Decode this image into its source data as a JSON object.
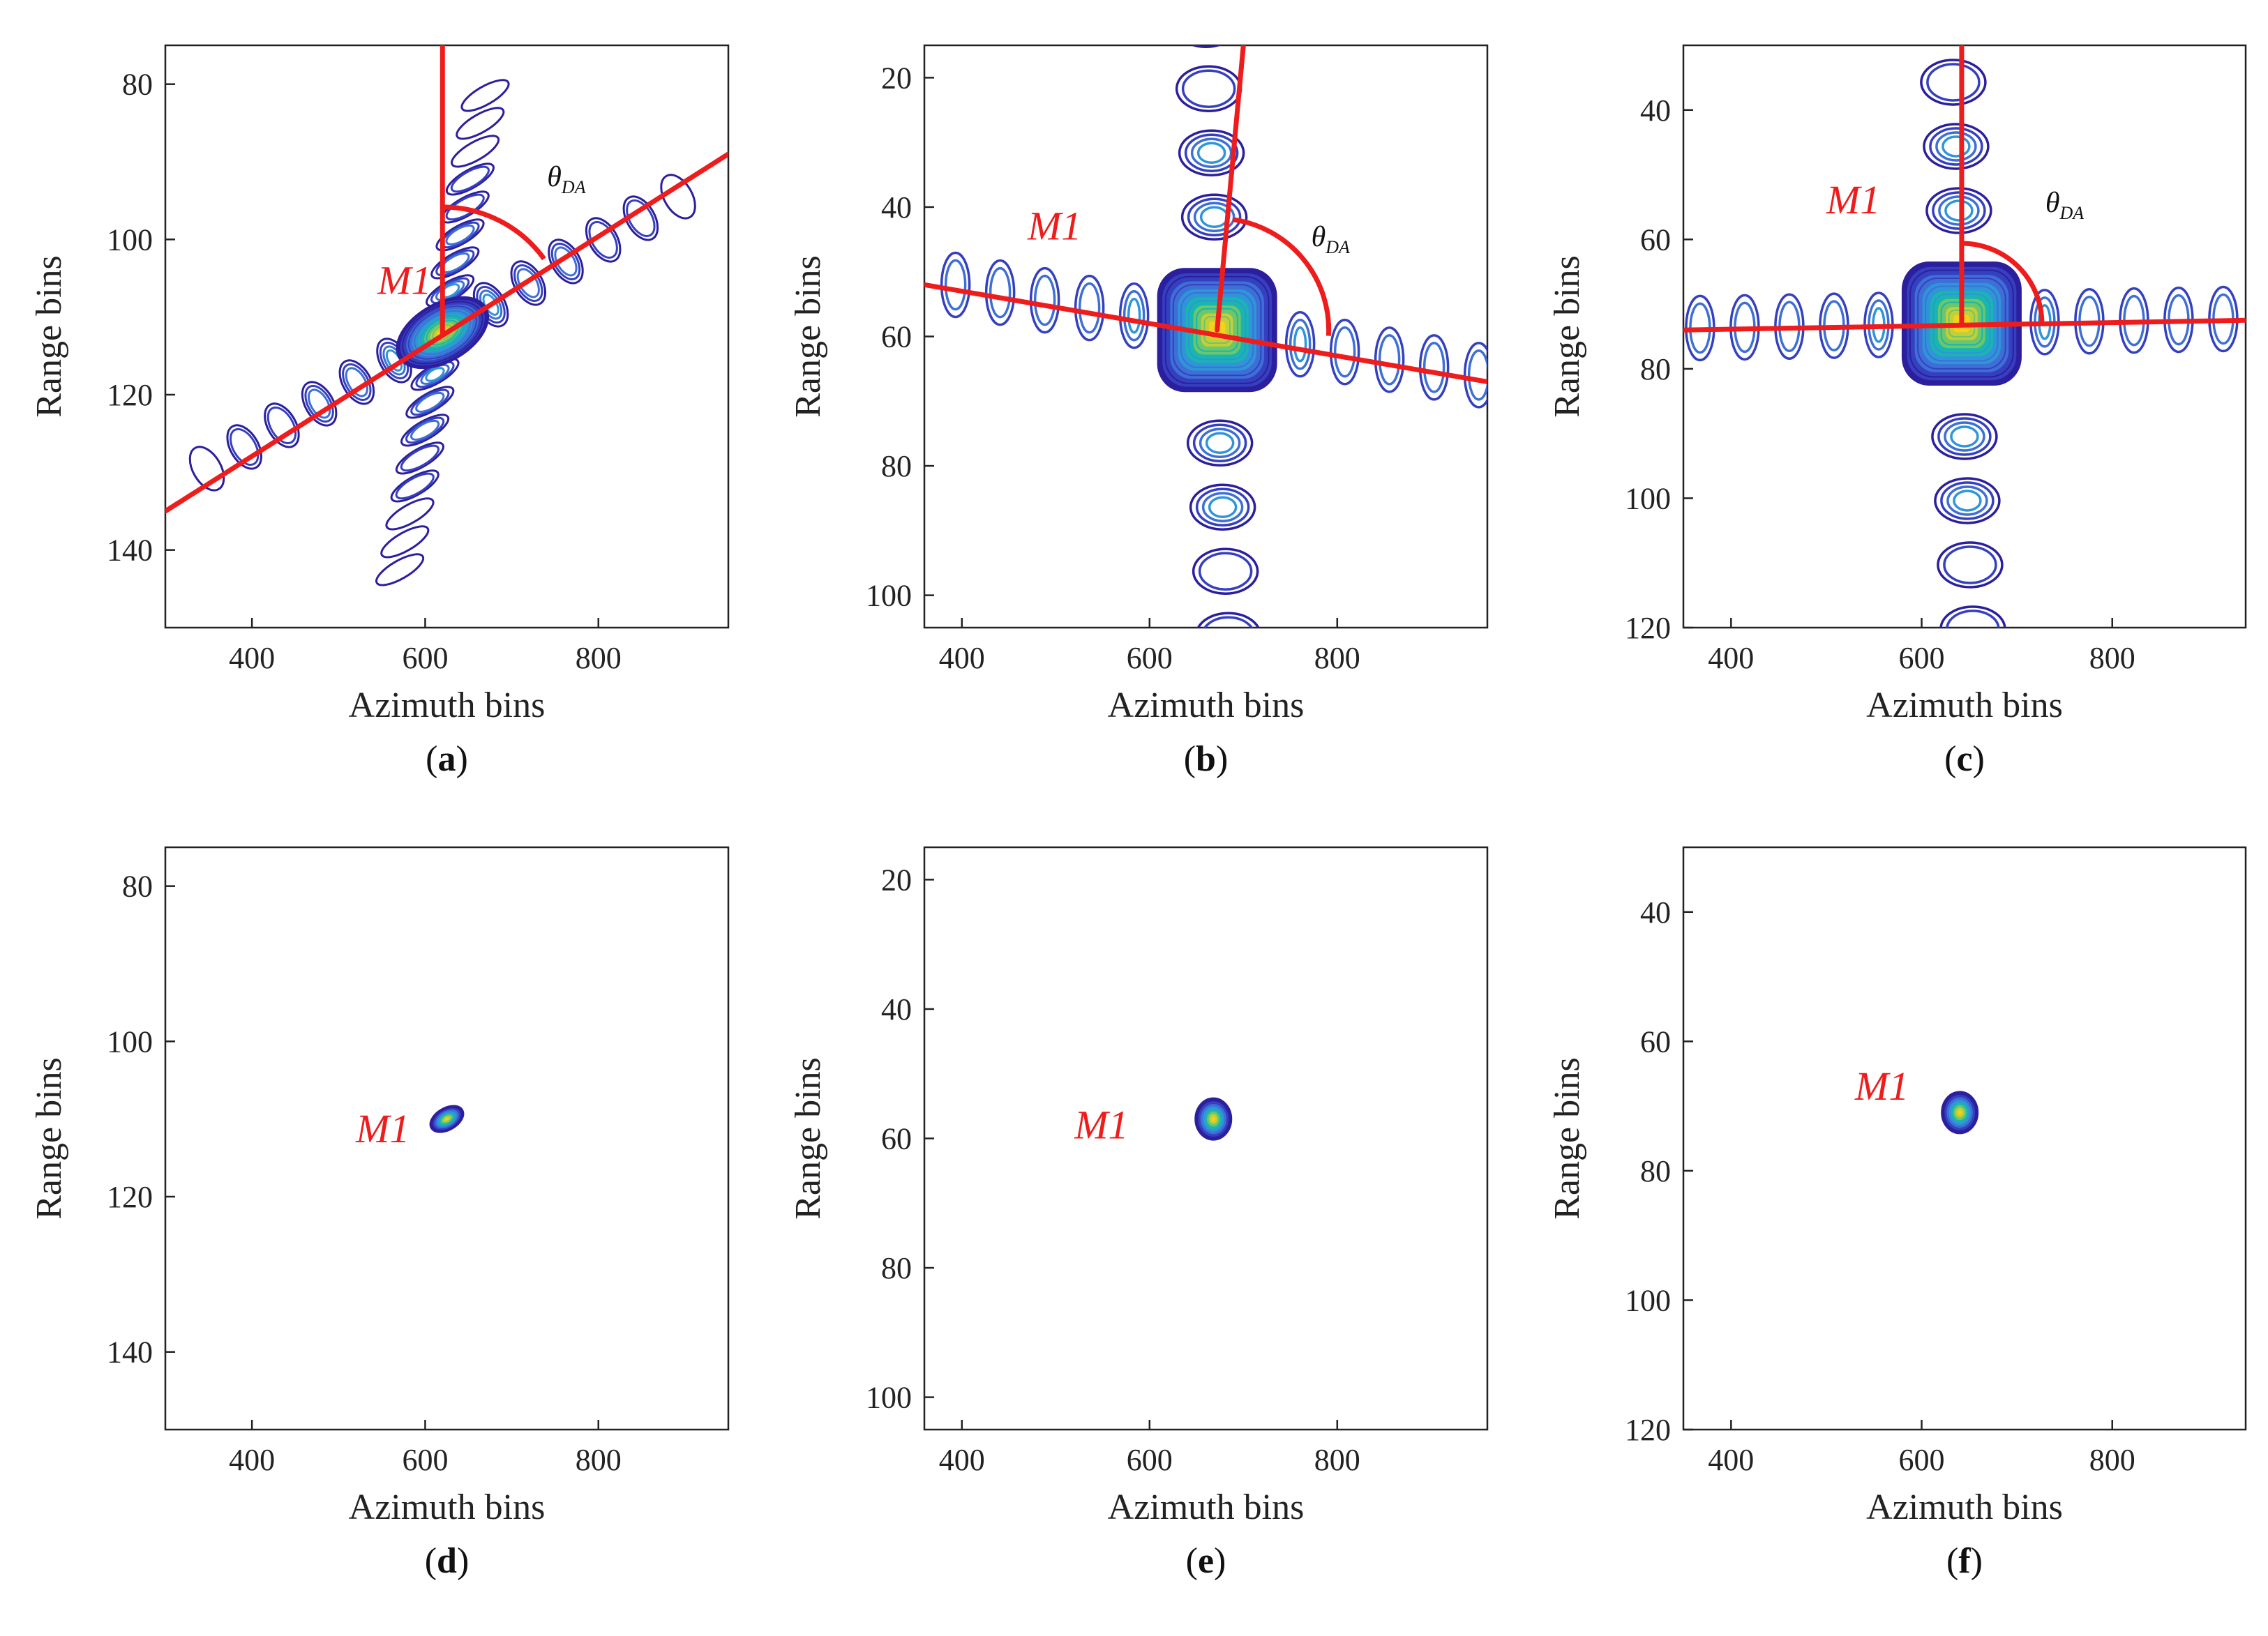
{
  "colors": {
    "contour_outer": "#2c1f9e",
    "contour_mid": "#3d6fd6",
    "contour_inner": "#19b6b0",
    "contour_core": "#f2d21a",
    "red_lines": "#ee1c1c",
    "axis": "#222222"
  },
  "chart_data": [
    {
      "id": "a",
      "type": "contour",
      "caption_letter": "a",
      "xlabel": "Azimuth bins",
      "ylabel": "Range bins",
      "xlim": [
        300,
        950
      ],
      "ylim": [
        150,
        75
      ],
      "y_reversed": true,
      "xticks": [
        400,
        600,
        800
      ],
      "yticks": [
        80,
        100,
        120,
        140
      ],
      "annotation": "M1",
      "annotation_pos": [
        545,
        107
      ],
      "angle_label": "θ",
      "angle_sub": "DA",
      "peak": {
        "x": 620,
        "y": 112,
        "orientation_deg": 30
      },
      "sidelobe_axis": "rotated",
      "sidelobes_main": 6,
      "sidelobes_cross": 8,
      "lines": [
        {
          "from": [
            300,
            135
          ],
          "to": [
            950,
            89
          ]
        },
        {
          "from": [
            620,
            112
          ],
          "to": [
            620,
            75
          ]
        }
      ],
      "angle_arc": {
        "center": [
          620,
          112
        ],
        "start_deg": 90,
        "end_deg": 36
      }
    },
    {
      "id": "b",
      "type": "contour",
      "caption_letter": "b",
      "xlabel": "Azimuth bins",
      "ylabel": "Range bins",
      "xlim": [
        360,
        960
      ],
      "ylim": [
        105,
        15
      ],
      "y_reversed": true,
      "xticks": [
        400,
        600,
        800
      ],
      "yticks": [
        20,
        40,
        60,
        80,
        100
      ],
      "annotation": "M1",
      "annotation_pos": [
        470,
        45
      ],
      "angle_label": "θ",
      "angle_sub": "DA",
      "peak": {
        "x": 672,
        "y": 59,
        "orientation_deg": 0
      },
      "sidelobe_axis": "cross",
      "sidelobes_main": 5,
      "sidelobes_cross": 7,
      "lines": [
        {
          "from": [
            360,
            52
          ],
          "to": [
            960,
            67
          ]
        },
        {
          "from": [
            672,
            59
          ],
          "to": [
            700,
            15
          ]
        }
      ],
      "angle_arc": {
        "center": [
          672,
          59
        ],
        "start_deg": 82,
        "end_deg": -3
      }
    },
    {
      "id": "c",
      "type": "contour",
      "caption_letter": "c",
      "xlabel": "Azimuth bins",
      "ylabel": "Range bins",
      "xlim": [
        350,
        940
      ],
      "ylim": [
        120,
        30
      ],
      "y_reversed": true,
      "xticks": [
        400,
        600,
        800
      ],
      "yticks": [
        40,
        60,
        80,
        100,
        120
      ],
      "annotation": "M1",
      "annotation_pos": [
        500,
        56
      ],
      "angle_label": "θ",
      "angle_sub": "DA",
      "peak": {
        "x": 642,
        "y": 73,
        "orientation_deg": 0
      },
      "sidelobe_axis": "cross",
      "sidelobes_main": 6,
      "sidelobes_cross": 6,
      "lines": [
        {
          "from": [
            350,
            74
          ],
          "to": [
            940,
            72.5
          ]
        },
        {
          "from": [
            642,
            73
          ],
          "to": [
            642,
            30
          ]
        }
      ],
      "angle_arc": {
        "center": [
          642,
          73
        ],
        "start_deg": 90,
        "end_deg": 1
      }
    },
    {
      "id": "d",
      "type": "contour",
      "caption_letter": "d",
      "xlabel": "Azimuth bins",
      "ylabel": "Range bins",
      "xlim": [
        300,
        950
      ],
      "ylim": [
        150,
        75
      ],
      "y_reversed": true,
      "xticks": [
        400,
        600,
        800
      ],
      "yticks": [
        80,
        100,
        120,
        140
      ],
      "annotation": "M1",
      "annotation_pos": [
        520,
        113
      ],
      "peak": {
        "x": 625,
        "y": 110,
        "orientation_deg": 30
      }
    },
    {
      "id": "e",
      "type": "contour",
      "caption_letter": "e",
      "xlabel": "Azimuth bins",
      "ylabel": "Range bins",
      "xlim": [
        360,
        960
      ],
      "ylim": [
        105,
        15
      ],
      "y_reversed": true,
      "xticks": [
        400,
        600,
        800
      ],
      "yticks": [
        20,
        40,
        60,
        80,
        100
      ],
      "annotation": "M1",
      "annotation_pos": [
        520,
        60
      ],
      "peak": {
        "x": 668,
        "y": 57,
        "orientation_deg": 0
      }
    },
    {
      "id": "f",
      "type": "contour",
      "caption_letter": "f",
      "xlabel": "Azimuth bins",
      "ylabel": "Range bins",
      "xlim": [
        350,
        940
      ],
      "ylim": [
        120,
        30
      ],
      "y_reversed": true,
      "xticks": [
        400,
        600,
        800
      ],
      "yticks": [
        40,
        60,
        80,
        100,
        120
      ],
      "annotation": "M1",
      "annotation_pos": [
        530,
        69
      ],
      "peak": {
        "x": 640,
        "y": 71,
        "orientation_deg": 0
      }
    }
  ]
}
